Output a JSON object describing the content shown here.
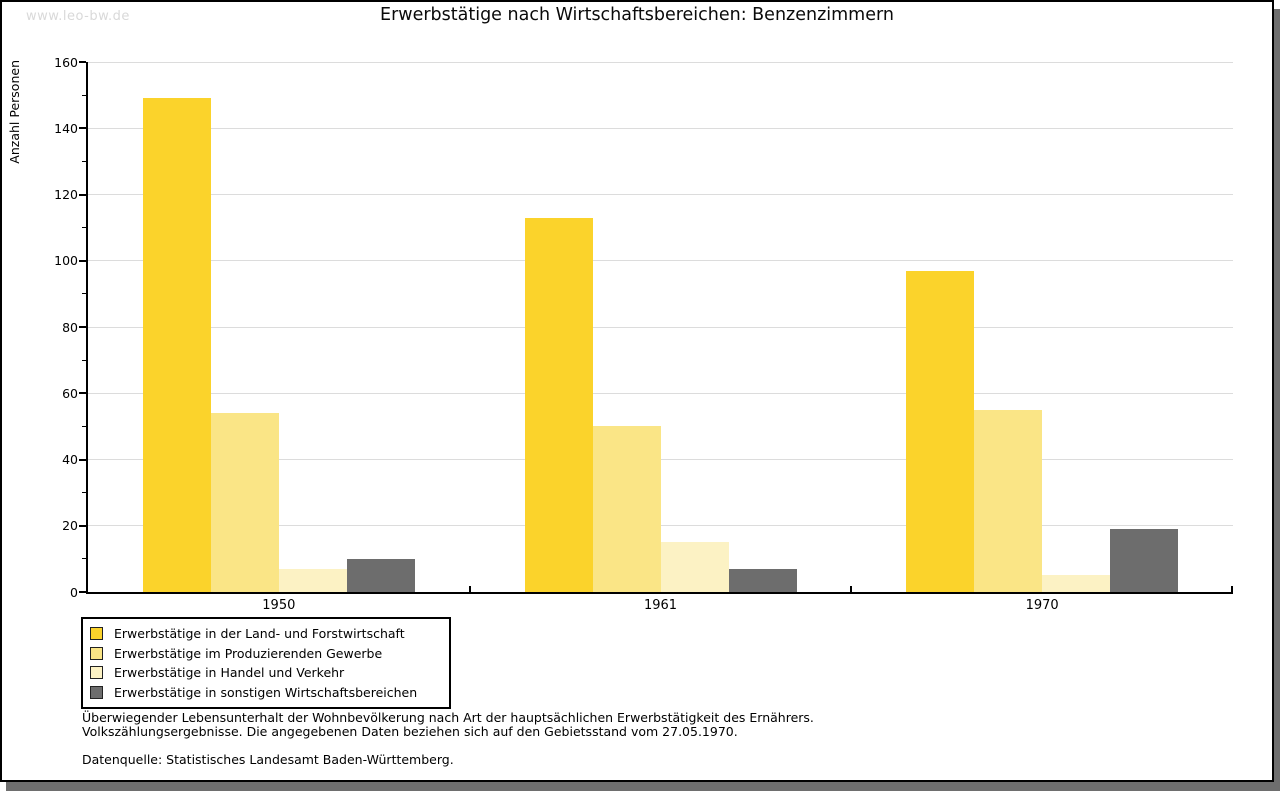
{
  "watermark": "www.leo-bw.de",
  "title": "Erwerbstätige nach Wirtschaftsbereichen: Benzenzimmern",
  "chart_data": {
    "type": "bar",
    "title": "Erwerbstätige nach Wirtschaftsbereichen: Benzenzimmern",
    "ylabel": "Anzahl Personen",
    "xlabel": "",
    "categories": [
      "1950",
      "1961",
      "1970"
    ],
    "series": [
      {
        "name": "Erwerbstätige in der Land- und Forstwirtschaft",
        "color": "#fbd32b",
        "values": [
          149,
          113,
          97
        ]
      },
      {
        "name": "Erwerbstätige im Produzierenden Gewerbe",
        "color": "#fae586",
        "values": [
          54,
          50,
          55
        ]
      },
      {
        "name": "Erwerbstätige in Handel und Verkehr",
        "color": "#fcf2c4",
        "values": [
          7,
          15,
          5
        ]
      },
      {
        "name": "Erwerbstätige in sonstigen Wirtschaftsbereichen",
        "color": "#6d6d6d",
        "values": [
          10,
          7,
          19
        ]
      }
    ],
    "ylim": [
      0,
      160
    ],
    "ytick_step": 20,
    "minor_tick_step": 10,
    "grid": true,
    "gridline_color": "#dcdcdc",
    "legend_position": "bottom-left"
  },
  "colors": {
    "frame_border": "#000000",
    "frame_shadow": "#6e6e6e",
    "watermark": "#d9d9d9"
  },
  "footnote": {
    "line1": "Überwiegender Lebensunterhalt der Wohnbevölkerung nach Art der hauptsächlichen Erwerbstätigkeit des Ernährers.",
    "line2": "Volkszählungsergebnisse. Die angegebenen Daten beziehen sich auf den Gebietsstand vom 27.05.1970."
  },
  "source": "Datenquelle: Statistisches Landesamt Baden-Württemberg."
}
